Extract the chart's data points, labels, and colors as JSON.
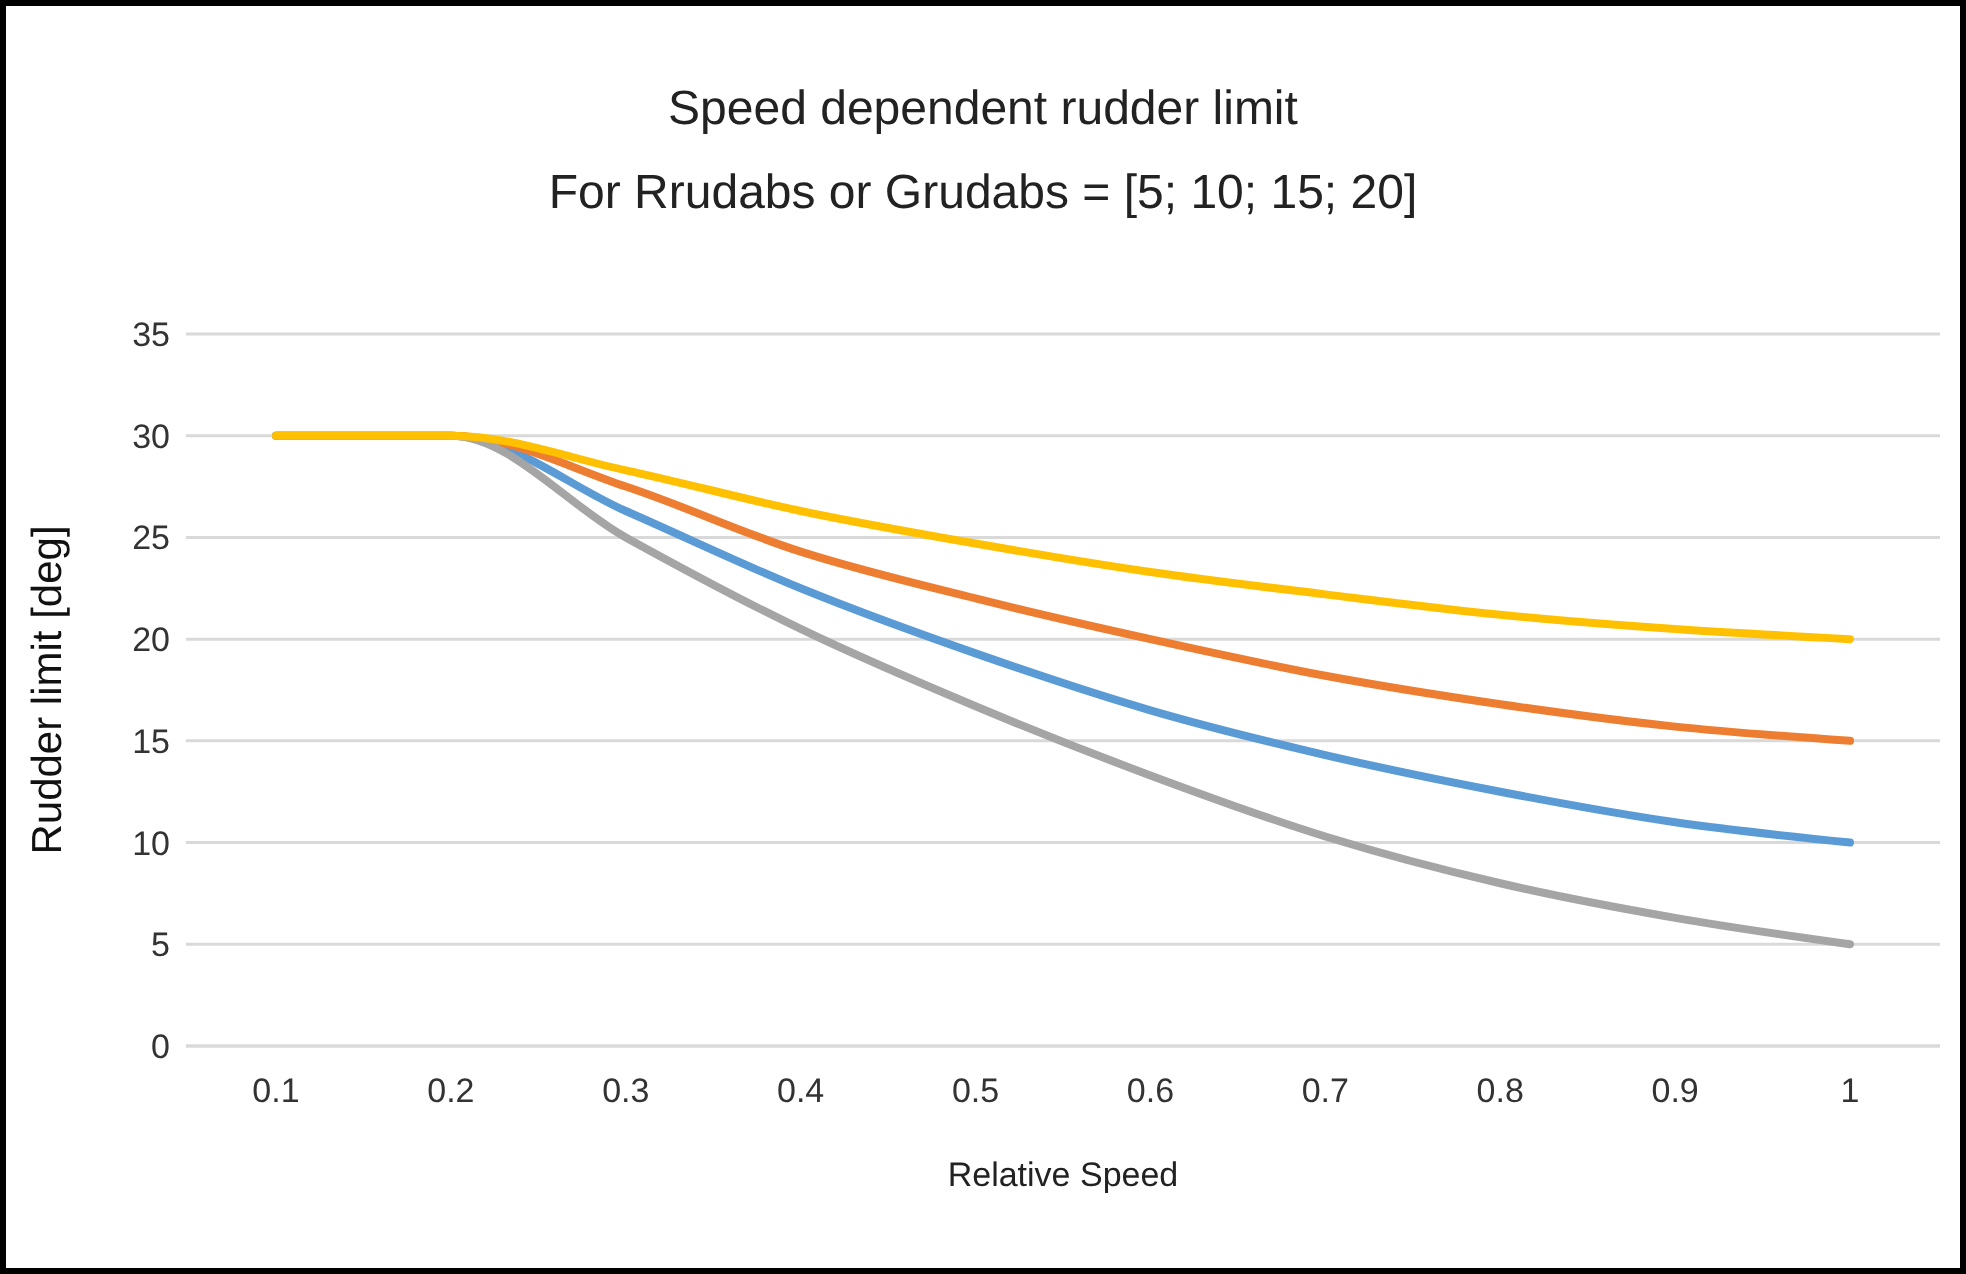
{
  "chart_data": {
    "type": "line",
    "title": "Speed dependent rudder limit",
    "subtitle": "For Rrudabs or Grudabs = [5; 10; 15; 20]",
    "xlabel": "Relative Speed",
    "ylabel": "Rudder limit [deg]",
    "categories": [
      "0.1",
      "0.2",
      "0.3",
      "0.4",
      "0.5",
      "0.6",
      "0.7",
      "0.8",
      "0.9",
      "1"
    ],
    "series": [
      {
        "color": "#5b9bd5",
        "values": [
          30,
          30,
          26.3,
          22.5,
          19.3,
          16.5,
          14.3,
          12.5,
          11,
          10
        ]
      },
      {
        "color": "#ed7d31",
        "values": [
          30,
          30,
          27.5,
          24.3,
          22,
          20,
          18.2,
          16.8,
          15.7,
          15
        ]
      },
      {
        "color": "#a5a5a5",
        "values": [
          30,
          30,
          25,
          20.5,
          16.7,
          13.3,
          10.3,
          8,
          6.3,
          5
        ]
      },
      {
        "color": "#ffc000",
        "values": [
          30,
          30,
          28.3,
          26.3,
          24.7,
          23.3,
          22.2,
          21.2,
          20.5,
          20
        ]
      }
    ],
    "ylim": [
      0,
      35
    ],
    "yticks": [
      0,
      5,
      10,
      15,
      20,
      25,
      30,
      35
    ],
    "grid": "y",
    "legend": false,
    "marker": "none",
    "line_style": "solid"
  }
}
